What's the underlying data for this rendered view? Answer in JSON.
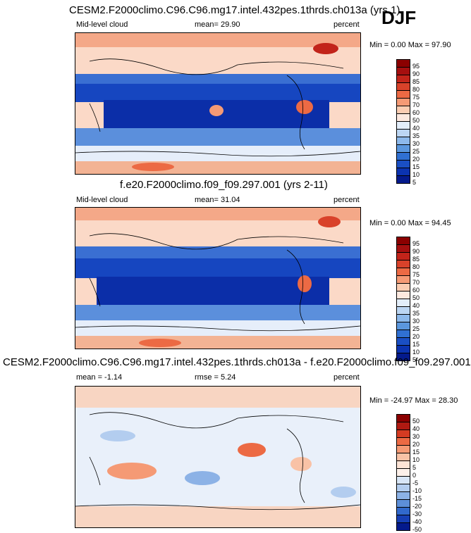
{
  "season": "DJF",
  "panels": [
    {
      "title": "CESM2.F2000climo.C96.C96.mg17.intel.432pes.1thrds.ch013a (yrs 1)",
      "left_label": "Mid-level cloud",
      "center_label": "mean=  29.90",
      "right_label": "percent",
      "minmax": "Min =   0.00 Max =  97.90",
      "levels": [
        "95",
        "90",
        "85",
        "80",
        "75",
        "70",
        "60",
        "50",
        "40",
        "35",
        "30",
        "25",
        "20",
        "15",
        "10",
        "5"
      ],
      "colors": [
        "#8b0000",
        "#a50f0f",
        "#c2241a",
        "#d9422a",
        "#ec6a44",
        "#f59a75",
        "#fbcdb2",
        "#fde9df",
        "#e3eefa",
        "#bcd6f3",
        "#8db9eb",
        "#5b97de",
        "#3070d2",
        "#1a4fc4",
        "#0b33b0",
        "#041a8c"
      ]
    },
    {
      "title": "f.e20.F2000climo.f09_f09.297.001 (yrs 2-11)",
      "left_label": "Mid-level cloud",
      "center_label": "mean=  31.04",
      "right_label": "percent",
      "minmax": "Min =   0.00 Max =  94.45",
      "levels": [
        "95",
        "90",
        "85",
        "80",
        "75",
        "70",
        "60",
        "50",
        "40",
        "35",
        "30",
        "25",
        "20",
        "15",
        "10",
        "5"
      ],
      "colors": [
        "#8b0000",
        "#a50f0f",
        "#c2241a",
        "#d9422a",
        "#ec6a44",
        "#f59a75",
        "#fbcdb2",
        "#fde9df",
        "#e3eefa",
        "#bcd6f3",
        "#8db9eb",
        "#5b97de",
        "#3070d2",
        "#1a4fc4",
        "#0b33b0",
        "#041a8c"
      ]
    },
    {
      "title": "CESM2.F2000climo.C96.C96.mg17.intel.432pes.1thrds.ch013a - f.e20.F2000climo.f09_f09.297.001",
      "left_label": "mean =  -1.14",
      "center_label": "rmse =   5.24",
      "right_label": "percent",
      "minmax": "Min = -24.97 Max =  28.30",
      "levels": [
        "50",
        "40",
        "30",
        "20",
        "15",
        "10",
        "5",
        "0",
        "-5",
        "-10",
        "-15",
        "-20",
        "-30",
        "-40",
        "-50"
      ],
      "colors": [
        "#8b0000",
        "#b01a12",
        "#d43b22",
        "#ec6a44",
        "#f59a75",
        "#f9c2a6",
        "#fde4d6",
        "#fdf1ea",
        "#d8e6f7",
        "#b3cdef",
        "#8cb2e6",
        "#5d8fd9",
        "#3169cc",
        "#163fb4",
        "#041a8c"
      ]
    }
  ],
  "chart_data": [
    {
      "type": "heatmap",
      "title": "CESM2.F2000climo.C96.C96.mg17.intel.432pes.1thrds.ch013a (yrs 1)",
      "variable": "Mid-level cloud",
      "units": "percent",
      "mean": 29.9,
      "min": 0.0,
      "max": 97.9,
      "colorbar_levels": [
        5,
        10,
        15,
        20,
        25,
        30,
        35,
        40,
        50,
        60,
        70,
        75,
        80,
        85,
        90,
        95
      ]
    },
    {
      "type": "heatmap",
      "title": "f.e20.F2000climo.f09_f09.297.001 (yrs 2-11)",
      "variable": "Mid-level cloud",
      "units": "percent",
      "mean": 31.04,
      "min": 0.0,
      "max": 94.45,
      "colorbar_levels": [
        5,
        10,
        15,
        20,
        25,
        30,
        35,
        40,
        50,
        60,
        70,
        75,
        80,
        85,
        90,
        95
      ]
    },
    {
      "type": "heatmap",
      "title": "CESM2.F2000climo.C96.C96.mg17.intel.432pes.1thrds.ch013a - f.e20.F2000climo.f09_f09.297.001",
      "units": "percent",
      "mean": -1.14,
      "rmse": 5.24,
      "min": -24.97,
      "max": 28.3,
      "colorbar_levels": [
        -50,
        -40,
        -30,
        -20,
        -15,
        -10,
        -5,
        0,
        5,
        10,
        15,
        20,
        30,
        40,
        50
      ]
    }
  ]
}
